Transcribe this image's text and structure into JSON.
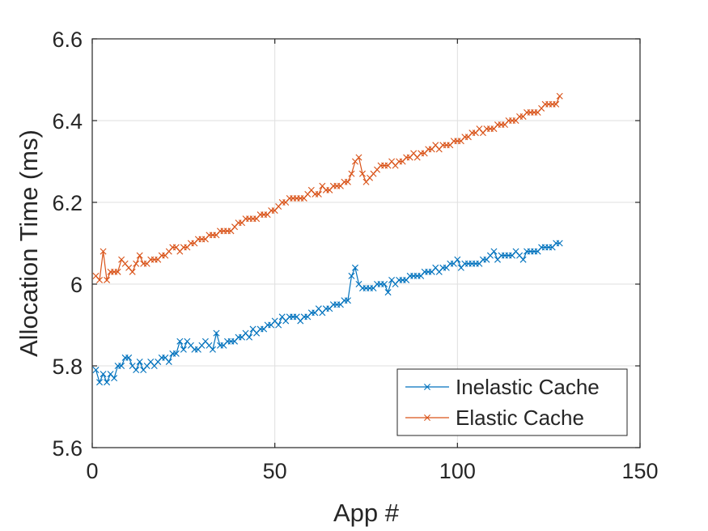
{
  "chart_data": {
    "type": "line",
    "title": "",
    "xlabel": "App #",
    "ylabel": "Allocation Time (ms)",
    "xlim": [
      0,
      150
    ],
    "ylim": [
      5.6,
      6.6
    ],
    "xticks": [
      0,
      50,
      100,
      150
    ],
    "xtick_labels": [
      "0",
      "50",
      "100",
      "150"
    ],
    "yticks": [
      5.6,
      5.8,
      6.0,
      6.2,
      6.4,
      6.6
    ],
    "ytick_labels": [
      "5.6",
      "5.8",
      "6",
      "6.2",
      "6.4",
      "6.6"
    ],
    "grid": true,
    "legend": "bottom-right",
    "marker": "x",
    "x": [
      1,
      2,
      3,
      4,
      5,
      6,
      7,
      8,
      9,
      10,
      11,
      12,
      13,
      14,
      15,
      16,
      17,
      18,
      19,
      20,
      21,
      22,
      23,
      24,
      25,
      26,
      27,
      28,
      29,
      30,
      31,
      32,
      33,
      34,
      35,
      36,
      37,
      38,
      39,
      40,
      41,
      42,
      43,
      44,
      45,
      46,
      47,
      48,
      49,
      50,
      51,
      52,
      53,
      54,
      55,
      56,
      57,
      58,
      59,
      60,
      61,
      62,
      63,
      64,
      65,
      66,
      67,
      68,
      69,
      70,
      71,
      72,
      73,
      74,
      75,
      76,
      77,
      78,
      79,
      80,
      81,
      82,
      83,
      84,
      85,
      86,
      87,
      88,
      89,
      90,
      91,
      92,
      93,
      94,
      95,
      96,
      97,
      98,
      99,
      100,
      101,
      102,
      103,
      104,
      105,
      106,
      107,
      108,
      109,
      110,
      111,
      112,
      113,
      114,
      115,
      116,
      117,
      118,
      119,
      120,
      121,
      122,
      123,
      124,
      125,
      126,
      127,
      128
    ],
    "series": [
      {
        "name": "Inelastic Cache",
        "color": "#0072BD",
        "values": [
          5.79,
          5.76,
          5.78,
          5.76,
          5.78,
          5.77,
          5.8,
          5.8,
          5.82,
          5.82,
          5.8,
          5.79,
          5.81,
          5.79,
          5.8,
          5.81,
          5.8,
          5.81,
          5.82,
          5.82,
          5.81,
          5.83,
          5.83,
          5.86,
          5.84,
          5.86,
          5.85,
          5.84,
          5.84,
          5.85,
          5.86,
          5.85,
          5.84,
          5.88,
          5.85,
          5.85,
          5.86,
          5.86,
          5.86,
          5.87,
          5.87,
          5.88,
          5.87,
          5.89,
          5.88,
          5.89,
          5.89,
          5.9,
          5.9,
          5.91,
          5.9,
          5.92,
          5.91,
          5.92,
          5.92,
          5.92,
          5.91,
          5.92,
          5.92,
          5.93,
          5.93,
          5.94,
          5.93,
          5.94,
          5.94,
          5.95,
          5.95,
          5.95,
          5.96,
          5.96,
          6.02,
          6.04,
          6.0,
          5.99,
          5.99,
          5.99,
          5.99,
          6.0,
          6.0,
          6.0,
          5.98,
          6.01,
          6.0,
          6.01,
          6.01,
          6.01,
          6.02,
          6.02,
          6.02,
          6.02,
          6.03,
          6.03,
          6.03,
          6.04,
          6.03,
          6.04,
          6.04,
          6.05,
          6.05,
          6.06,
          6.04,
          6.05,
          6.05,
          6.05,
          6.05,
          6.05,
          6.06,
          6.06,
          6.07,
          6.08,
          6.06,
          6.07,
          6.07,
          6.07,
          6.07,
          6.08,
          6.07,
          6.06,
          6.08,
          6.08,
          6.08,
          6.08,
          6.09,
          6.09,
          6.09,
          6.09,
          6.1,
          6.1
        ]
      },
      {
        "name": "Elastic Cache",
        "color": "#D95319",
        "values": [
          6.02,
          6.01,
          6.08,
          6.01,
          6.03,
          6.03,
          6.03,
          6.06,
          6.05,
          6.04,
          6.03,
          6.05,
          6.07,
          6.05,
          6.05,
          6.06,
          6.06,
          6.06,
          6.07,
          6.07,
          6.08,
          6.09,
          6.09,
          6.08,
          6.09,
          6.09,
          6.1,
          6.1,
          6.11,
          6.11,
          6.11,
          6.12,
          6.12,
          6.12,
          6.13,
          6.13,
          6.13,
          6.13,
          6.14,
          6.15,
          6.15,
          6.16,
          6.16,
          6.16,
          6.16,
          6.17,
          6.17,
          6.17,
          6.18,
          6.18,
          6.19,
          6.2,
          6.2,
          6.21,
          6.21,
          6.21,
          6.21,
          6.21,
          6.22,
          6.23,
          6.22,
          6.22,
          6.24,
          6.23,
          6.23,
          6.24,
          6.24,
          6.24,
          6.25,
          6.25,
          6.27,
          6.3,
          6.31,
          6.27,
          6.25,
          6.26,
          6.27,
          6.28,
          6.29,
          6.29,
          6.29,
          6.3,
          6.29,
          6.3,
          6.3,
          6.31,
          6.31,
          6.32,
          6.31,
          6.32,
          6.32,
          6.33,
          6.33,
          6.34,
          6.33,
          6.34,
          6.34,
          6.34,
          6.35,
          6.35,
          6.35,
          6.36,
          6.36,
          6.37,
          6.37,
          6.38,
          6.37,
          6.38,
          6.38,
          6.38,
          6.39,
          6.39,
          6.39,
          6.4,
          6.4,
          6.4,
          6.41,
          6.41,
          6.42,
          6.42,
          6.42,
          6.42,
          6.43,
          6.44,
          6.44,
          6.44,
          6.44,
          6.46
        ]
      }
    ]
  }
}
